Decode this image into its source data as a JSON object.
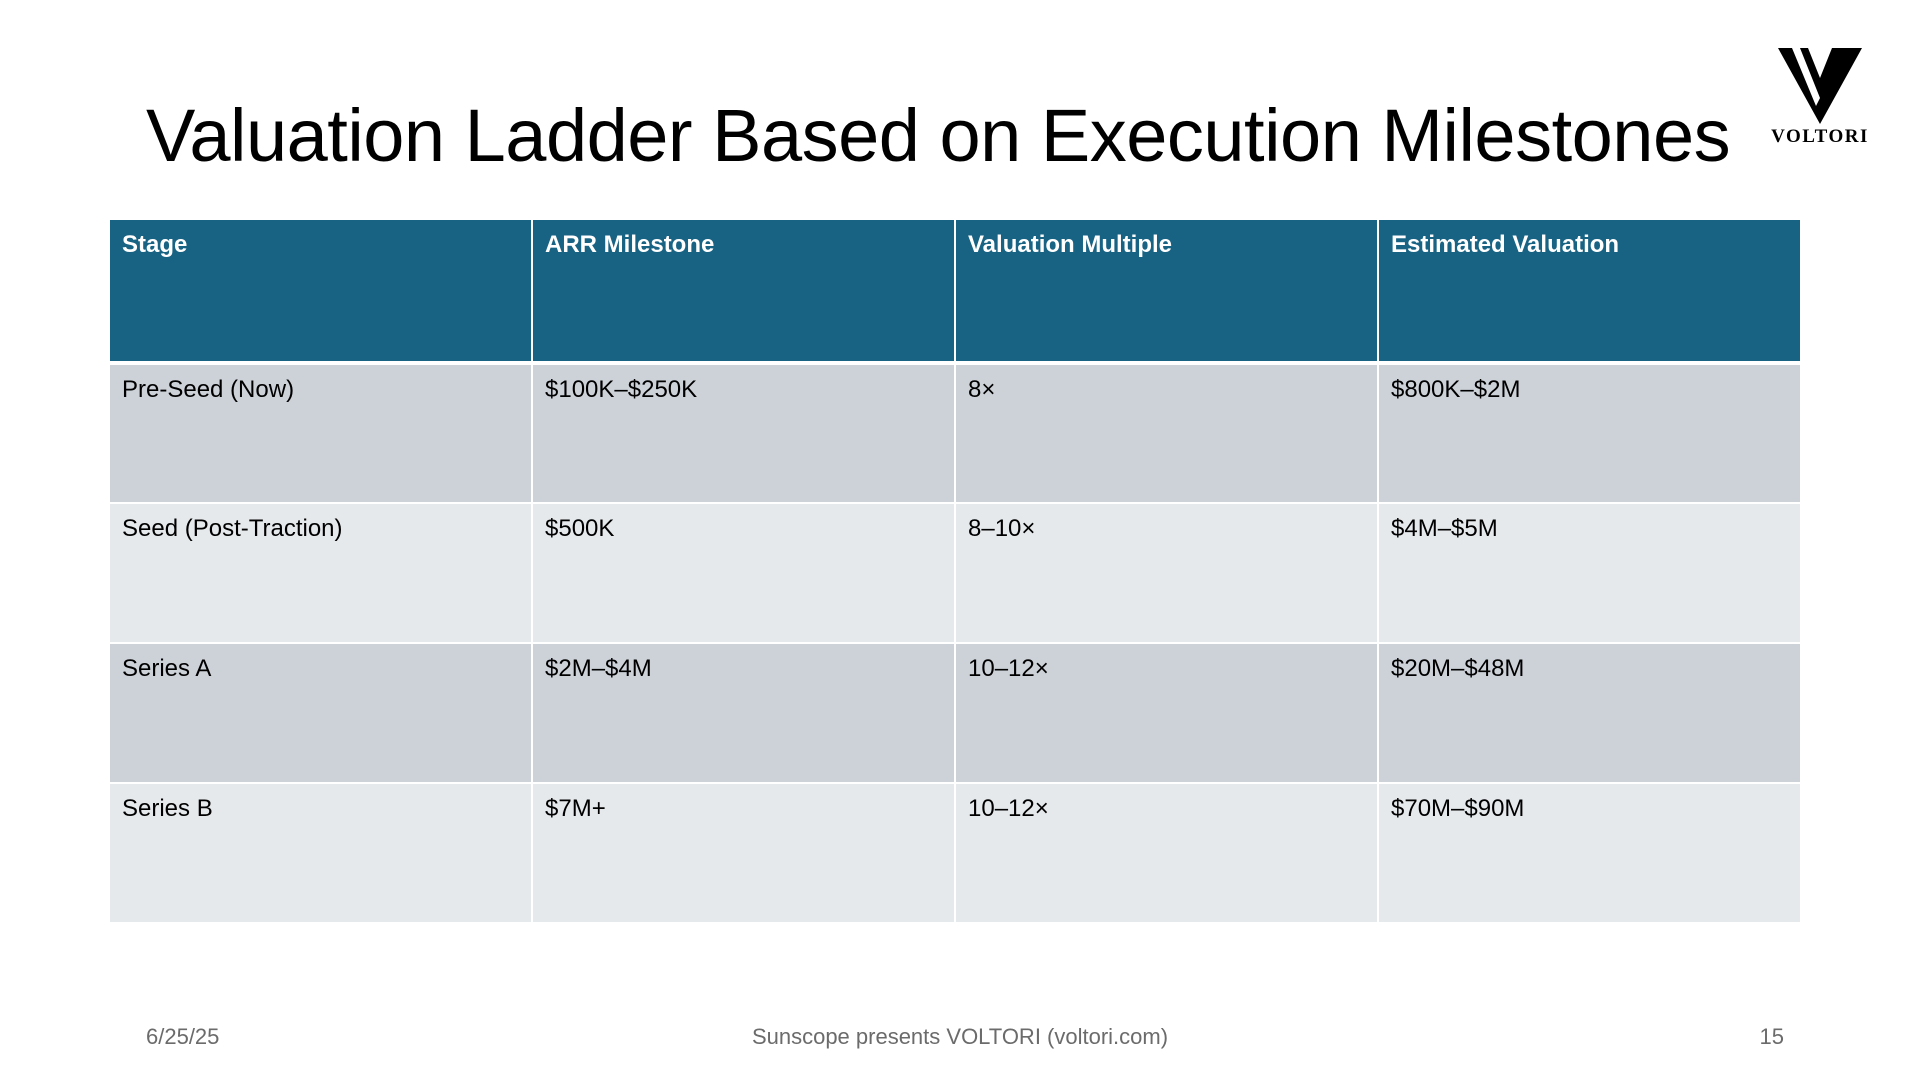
{
  "title": "Valuation Ladder Based on Execution Milestones",
  "logo": {
    "text": "VOLTORI",
    "icon": "v-logo-icon"
  },
  "table": {
    "headers": [
      "Stage",
      "ARR Milestone",
      "Valuation Multiple",
      "Estimated Valuation"
    ],
    "rows": [
      [
        "Pre-Seed (Now)",
        "$100K–$250K",
        "8×",
        "$800K–$2M"
      ],
      [
        "Seed (Post-Traction)",
        "$500K",
        "8–10×",
        "$4M–$5M"
      ],
      [
        "Series A",
        "$2M–$4M",
        "10–12×",
        "$20M–$48M"
      ],
      [
        "Series B",
        "$7M+",
        "10–12×",
        "$70M–$90M"
      ]
    ]
  },
  "footer": {
    "date": "6/25/25",
    "center": "Sunscope presents VOLTORI (voltori.com)",
    "page": "15"
  },
  "colors": {
    "header_bg": "#186283",
    "row_dark": "#cdd2d9",
    "row_light": "#e6e9ec",
    "footer_text": "#6b6b6b"
  }
}
